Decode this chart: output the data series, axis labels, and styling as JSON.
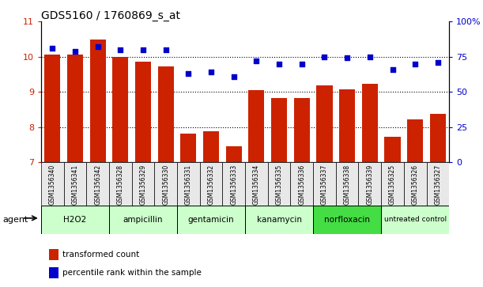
{
  "title": "GDS5160 / 1760869_s_at",
  "samples": [
    "GSM1356340",
    "GSM1356341",
    "GSM1356342",
    "GSM1356328",
    "GSM1356329",
    "GSM1356330",
    "GSM1356331",
    "GSM1356332",
    "GSM1356333",
    "GSM1356334",
    "GSM1356335",
    "GSM1356336",
    "GSM1356337",
    "GSM1356338",
    "GSM1356339",
    "GSM1356325",
    "GSM1356326",
    "GSM1356327"
  ],
  "bar_values": [
    10.05,
    10.05,
    10.48,
    10.0,
    9.85,
    9.73,
    7.82,
    7.88,
    7.45,
    9.05,
    8.82,
    8.82,
    9.18,
    9.08,
    9.22,
    7.72,
    8.22,
    8.38
  ],
  "percentile_values": [
    81,
    79,
    82,
    80,
    80,
    80,
    63,
    64,
    61,
    72,
    70,
    70,
    75,
    74,
    75,
    66,
    70,
    71
  ],
  "groups": [
    {
      "label": "H2O2",
      "start": 0,
      "end": 3,
      "color": "#ccffcc"
    },
    {
      "label": "ampicillin",
      "start": 3,
      "end": 6,
      "color": "#ccffcc"
    },
    {
      "label": "gentamicin",
      "start": 6,
      "end": 9,
      "color": "#ccffcc"
    },
    {
      "label": "kanamycin",
      "start": 9,
      "end": 12,
      "color": "#ccffcc"
    },
    {
      "label": "norfloxacin",
      "start": 12,
      "end": 15,
      "color": "#44dd44"
    },
    {
      "label": "untreated control",
      "start": 15,
      "end": 18,
      "color": "#ccffcc"
    }
  ],
  "bar_color": "#cc2200",
  "dot_color": "#0000cc",
  "ylim_left": [
    7,
    11
  ],
  "ylim_right": [
    0,
    100
  ],
  "yticks_left": [
    7,
    8,
    9,
    10,
    11
  ],
  "yticks_right": [
    0,
    25,
    50,
    75,
    100
  ],
  "ytick_labels_right": [
    "0",
    "25",
    "50",
    "75",
    "100%"
  ],
  "grid_lines": [
    8,
    9,
    10
  ],
  "background_color": "#e8e8e8",
  "plot_bg": "#ffffff",
  "bar_bottom": 7,
  "title_fontsize": 10,
  "agent_label": "agent",
  "legend_items": [
    {
      "color": "#cc2200",
      "label": "transformed count"
    },
    {
      "color": "#0000cc",
      "label": "percentile rank within the sample"
    }
  ]
}
